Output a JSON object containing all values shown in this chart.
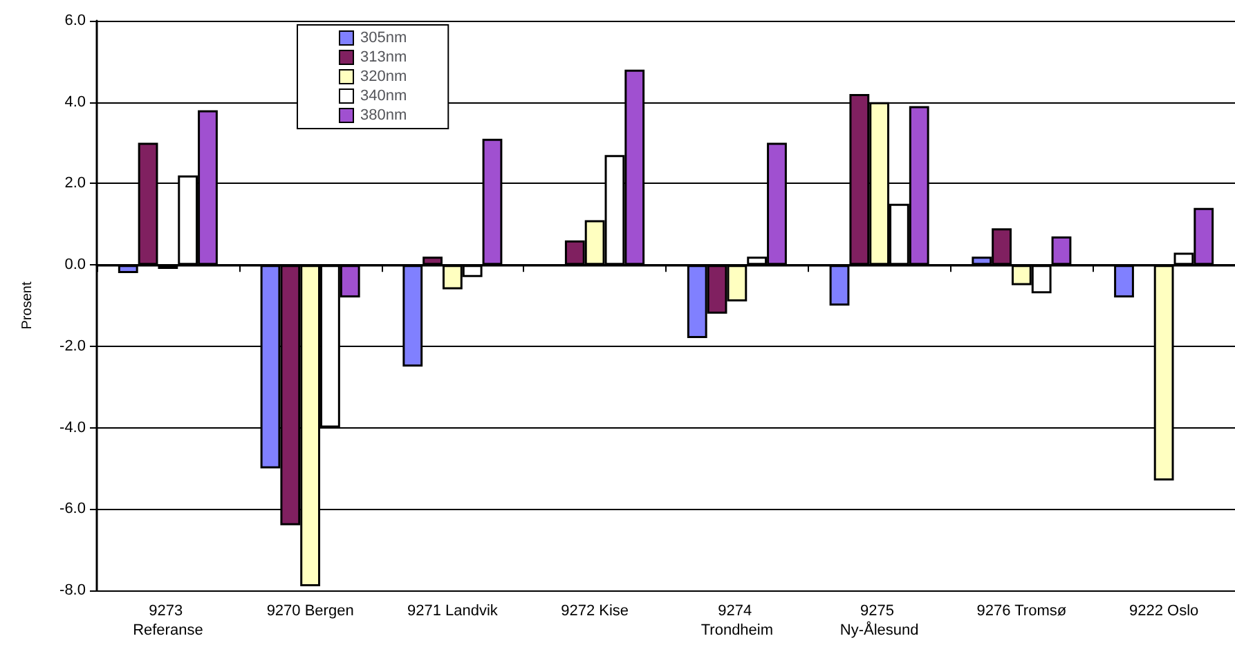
{
  "chart_data": {
    "type": "bar",
    "ylabel": "Prosent",
    "categories": [
      "9273 Referanse",
      "9270 Bergen",
      "9271 Landvik",
      "9272 Kise",
      "9274 Trondheim",
      "9275 Ny-Ålesund",
      "9276 Tromsø",
      "9222 Oslo"
    ],
    "series": [
      {
        "name": "305nm",
        "color": "#8080ff",
        "values": [
          -0.2,
          -5.0,
          -2.5,
          null,
          -1.8,
          -1.0,
          0.2,
          -0.8
        ]
      },
      {
        "name": "313nm",
        "color": "#802060",
        "values": [
          3.0,
          -6.4,
          0.2,
          0.6,
          -1.2,
          4.2,
          0.9,
          null
        ]
      },
      {
        "name": "320nm",
        "color": "#ffffc0",
        "values": [
          -0.1,
          -7.9,
          -0.6,
          1.1,
          -0.9,
          4.0,
          -0.5,
          -5.3
        ]
      },
      {
        "name": "340nm",
        "color": "#ffffff",
        "values": [
          2.2,
          -4.0,
          -0.3,
          2.7,
          0.2,
          1.5,
          -0.7,
          0.3
        ]
      },
      {
        "name": "380nm",
        "color": "#a050d0",
        "values": [
          3.8,
          -0.8,
          3.1,
          4.8,
          3.0,
          3.9,
          0.7,
          1.4
        ]
      }
    ],
    "ylim": [
      -8,
      6
    ],
    "yticks": [
      {
        "value": -8,
        "label": "-8.0"
      },
      {
        "value": -6,
        "label": "-6.0"
      },
      {
        "value": -4,
        "label": "-4.0"
      },
      {
        "value": -2,
        "label": "-2.0"
      },
      {
        "value": 0,
        "label": "0.0"
      },
      {
        "value": 2,
        "label": "2.0"
      },
      {
        "value": 4,
        "label": "4.0"
      },
      {
        "value": 6,
        "label": "6.0"
      }
    ],
    "grid": "y",
    "legend": "top left"
  }
}
